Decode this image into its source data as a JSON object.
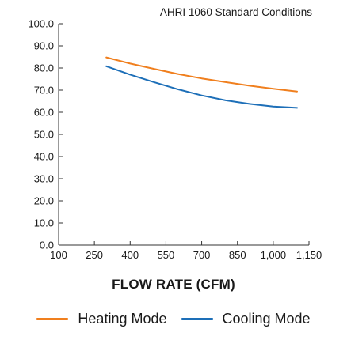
{
  "chart_data": {
    "type": "line",
    "title": "",
    "subtitle": "AHRI 1060 Standard Conditions",
    "xlabel": "FLOW RATE (CFM)",
    "ylabel": "",
    "xlim": [
      100,
      1150
    ],
    "ylim": [
      0,
      100
    ],
    "xticks": [
      100,
      250,
      400,
      550,
      700,
      850,
      1000,
      1150
    ],
    "xtick_labels": [
      "100",
      "250",
      "400",
      "550",
      "700",
      "850",
      "1,000",
      "1,150"
    ],
    "yticks": [
      0,
      10,
      20,
      30,
      40,
      50,
      60,
      70,
      80,
      90,
      100
    ],
    "ytick_labels": [
      "0.0",
      "10.0",
      "20.0",
      "30.0",
      "40.0",
      "50.0",
      "60.0",
      "70.0",
      "80.0",
      "90.0",
      "100.0"
    ],
    "grid": false,
    "legend_position": "bottom",
    "series": [
      {
        "name": "Heating Mode",
        "color": "#f07f1e",
        "x": [
          300,
          400,
          500,
          600,
          700,
          800,
          900,
          1000,
          1100
        ],
        "y": [
          84.8,
          82.0,
          79.6,
          77.3,
          75.3,
          73.6,
          72.0,
          70.6,
          69.4
        ]
      },
      {
        "name": "Cooling Mode",
        "color": "#1d6fb8",
        "x": [
          300,
          400,
          500,
          600,
          700,
          800,
          900,
          1000,
          1100
        ],
        "y": [
          80.8,
          77.0,
          73.6,
          70.4,
          67.6,
          65.4,
          63.8,
          62.6,
          62.0
        ]
      }
    ]
  }
}
